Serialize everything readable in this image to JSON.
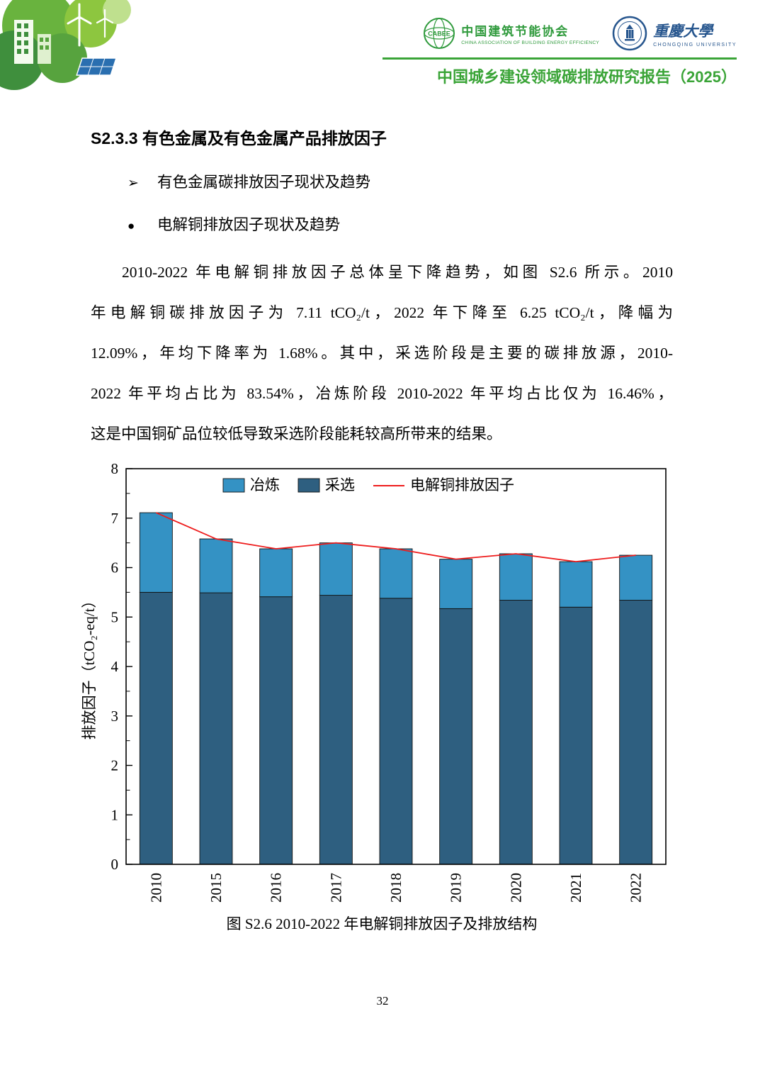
{
  "colors": {
    "accent_green": "#3aa437",
    "logo_green": "#2f9a3c",
    "logo_blue": "#27568e",
    "bar_dark_blue": "#2e5f80",
    "bar_light_blue": "#3492c4",
    "line_red": "#ee1c1c"
  },
  "header": {
    "report_title": "中国城乡建设领域碳排放研究报告（2025）",
    "cabee": {
      "logo_text": "CABEE",
      "name": "中国建筑节能协会",
      "subtitle": "CHINA ASSOCIATION OF BUILDING ENERGY EFFICIENCY"
    },
    "university": {
      "name": "重慶大學",
      "subtitle": "CHONGQING UNIVERSITY"
    }
  },
  "content": {
    "section_heading": "S2.3.3 有色金属及有色金属产品排放因子",
    "bullets": [
      {
        "marker": "➢",
        "text": "有色金属碳排放因子现状及趋势"
      },
      {
        "marker": "●",
        "text": "电解铜排放因子现状及趋势"
      }
    ],
    "paragraph_lines": [
      "2010-2022 年电解铜排放因子总体呈下降趋势，如图 S2.6 所示。2010",
      "年电解铜碳排放因子为 7.11 tCO₂/t，2022 年下降至 6.25 tCO₂/t，降幅为",
      "12.09%，年均下降率为 1.68%。其中，采选阶段是主要的碳排放源，2010-",
      "2022 年平均占比为 83.54%，冶炼阶段 2010-2022 年平均占比仅为 16.46%，",
      "这是中国铜矿品位较低导致采选阶段能耗较高所带来的结果。"
    ]
  },
  "figure": {
    "caption": "图 S2.6 2010-2022 年电解铜排放因子及排放结构"
  },
  "chart_data": {
    "type": "bar",
    "subtype": "stacked-bars-with-line-overlay",
    "title": "",
    "categories": [
      "2010",
      "2015",
      "2016",
      "2017",
      "2018",
      "2019",
      "2020",
      "2021",
      "2022"
    ],
    "series": [
      {
        "name": "采选",
        "color": "#2e5f80",
        "values": [
          5.5,
          5.49,
          5.41,
          5.44,
          5.38,
          5.17,
          5.34,
          5.2,
          5.34
        ]
      },
      {
        "name": "冶炼",
        "color": "#3492c4",
        "values": [
          1.61,
          1.09,
          0.97,
          1.06,
          1.0,
          1.0,
          0.94,
          0.92,
          0.91
        ]
      }
    ],
    "line": {
      "name": "电解铜排放因子",
      "color": "#ee1c1c",
      "values": [
        7.11,
        6.58,
        6.38,
        6.5,
        6.38,
        6.17,
        6.28,
        6.12,
        6.25
      ]
    },
    "xlabel": "",
    "ylabel": "排放因子（tCO₂-eq/t）",
    "ylim": [
      0,
      8
    ],
    "yticks": [
      0,
      1,
      2,
      3,
      4,
      5,
      6,
      7,
      8
    ],
    "legend": [
      "冶炼",
      "采选",
      "电解铜排放因子"
    ],
    "legend_position": "inside-top-left",
    "grid": false,
    "x_tick_label_rotation": -90
  },
  "footer": {
    "page_number": "32"
  }
}
